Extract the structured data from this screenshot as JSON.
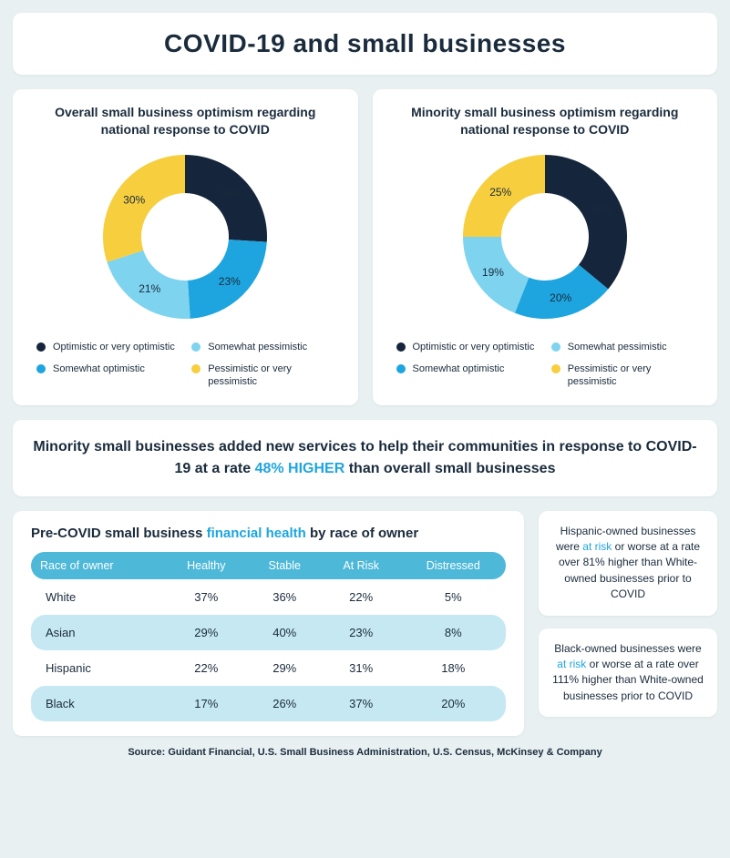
{
  "title": "COVID-19 and small businesses",
  "colors": {
    "bg": "#e8f0f2",
    "card": "#ffffff",
    "text": "#1a2b3c",
    "accent": "#1ea5e0",
    "tableHeader": "#4eb8d9",
    "tableAlt": "#c5e8f2"
  },
  "donuts": [
    {
      "title": "Overall small business optimism regarding national response to COVID",
      "slices": [
        {
          "label": "Optimistic or very optimistic",
          "value": 26,
          "color": "#15253b",
          "labelColor": "#ffffff"
        },
        {
          "label": "Somewhat optimistic",
          "value": 23,
          "color": "#1ea5e0",
          "labelColor": "#ffffff"
        },
        {
          "label": "Somewhat pessimistic",
          "value": 21,
          "color": "#7ed3ef",
          "labelColor": "#1a2b3c"
        },
        {
          "label": "Pessimistic or very pessimistic",
          "value": 30,
          "color": "#f6ce3e",
          "labelColor": "#1a2b3c"
        }
      ]
    },
    {
      "title": "Minority small business optimism regarding national response to COVID",
      "slices": [
        {
          "label": "Optimistic or very optimistic",
          "value": 36,
          "color": "#15253b",
          "labelColor": "#ffffff"
        },
        {
          "label": "Somewhat optimistic",
          "value": 20,
          "color": "#1ea5e0",
          "labelColor": "#ffffff"
        },
        {
          "label": "Somewhat pessimistic",
          "value": 19,
          "color": "#7ed3ef",
          "labelColor": "#1a2b3c"
        },
        {
          "label": "Pessimistic or very pessimistic",
          "value": 25,
          "color": "#f6ce3e",
          "labelColor": "#1a2b3c"
        }
      ]
    }
  ],
  "legendOrder": [
    0,
    2,
    1,
    3
  ],
  "callout": {
    "pre": "Minority small businesses added new services to help their communities in response to COVID-19 at a rate ",
    "highlight": "48% HIGHER",
    "post": " than overall small businesses"
  },
  "table": {
    "titlePre": "Pre-COVID small business ",
    "titleHighlight": "financial health",
    "titlePost": " by race of owner",
    "columns": [
      "Race of owner",
      "Healthy",
      "Stable",
      "At Risk",
      "Distressed"
    ],
    "rows": [
      {
        "cells": [
          "White",
          "37%",
          "36%",
          "22%",
          "5%"
        ],
        "alt": false
      },
      {
        "cells": [
          "Asian",
          "29%",
          "40%",
          "23%",
          "8%"
        ],
        "alt": true
      },
      {
        "cells": [
          "Hispanic",
          "22%",
          "29%",
          "31%",
          "18%"
        ],
        "alt": false
      },
      {
        "cells": [
          "Black",
          "17%",
          "26%",
          "37%",
          "20%"
        ],
        "alt": true
      }
    ]
  },
  "sideCards": [
    {
      "pre": "Hispanic-owned businesses were ",
      "risk": "at risk",
      "post": " or worse at a rate over 81% higher than White-owned businesses prior to COVID"
    },
    {
      "pre": "Black-owned businesses were ",
      "risk": "at risk",
      "post": " or worse at a rate over 111% higher than White-owned businesses prior to COVID"
    }
  ],
  "source": "Source: Guidant Financial, U.S. Small Business Administration, U.S. Census, McKinsey & Company",
  "donutGeom": {
    "outerR": 90,
    "innerR": 48,
    "labelR": 69,
    "startAngle": -90,
    "size": 200
  }
}
